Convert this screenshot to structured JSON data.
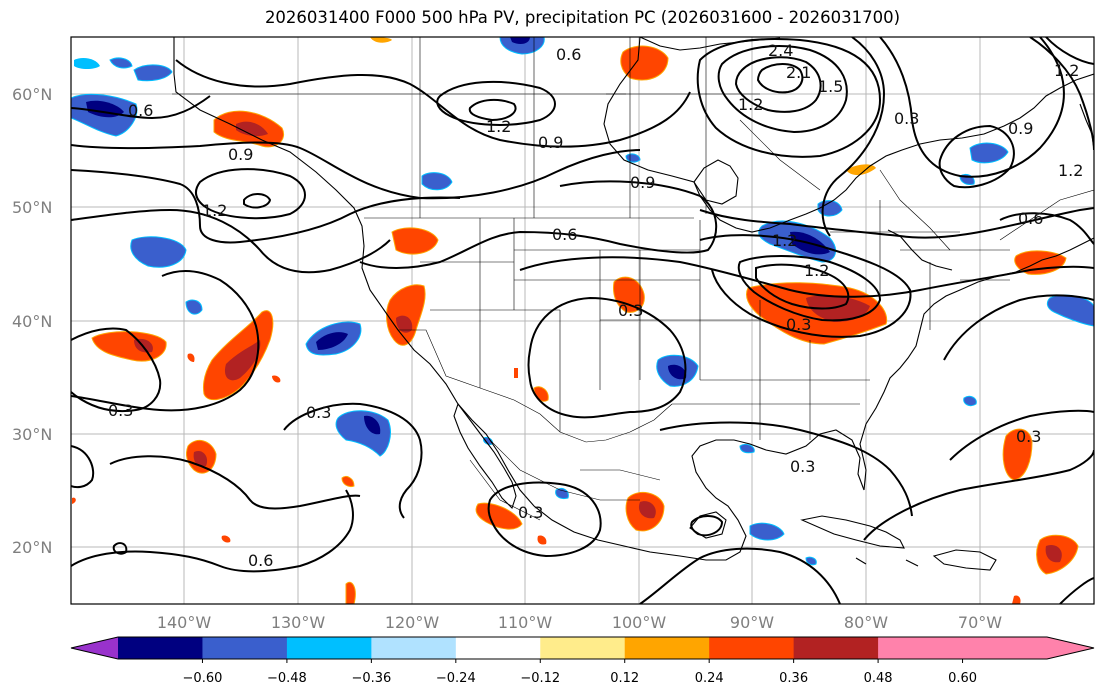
{
  "title": "2026031400 F000 500 hPa PV, precipitation PC (2026031600 - 2026031700)",
  "map": {
    "lat_labels": [
      "60°N",
      "50°N",
      "40°N",
      "30°N",
      "20°N"
    ],
    "lon_labels": [
      "140°W",
      "130°W",
      "120°W",
      "110°W",
      "100°W",
      "90°W",
      "80°W",
      "70°W"
    ]
  },
  "contour_labels": [
    "0.6",
    "1.2",
    "0.9",
    "1.2",
    "2.4",
    "2.1",
    "1.5",
    "0.3",
    "1.2",
    "0.9",
    "0.6",
    "1.2",
    "0.9",
    "0.6",
    "1.2",
    "0.3",
    "0.3",
    "0.3",
    "0.6",
    "0.3",
    "0.3",
    "0.6",
    "1.2",
    "0.3",
    "0.9"
  ],
  "colorbar": {
    "tick_labels": [
      "−0.60",
      "−0.48",
      "−0.36",
      "−0.24",
      "−0.12",
      "0.12",
      "0.24",
      "0.36",
      "0.48",
      "0.60"
    ],
    "colors": [
      "#9932cc",
      "#000080",
      "#3a5fcd",
      "#00bfff",
      "#b0e2ff",
      "#ffffff",
      "#ffec8b",
      "#ffa500",
      "#ff4500",
      "#b22222",
      "#ff82ab",
      "#ff82ab"
    ]
  }
}
